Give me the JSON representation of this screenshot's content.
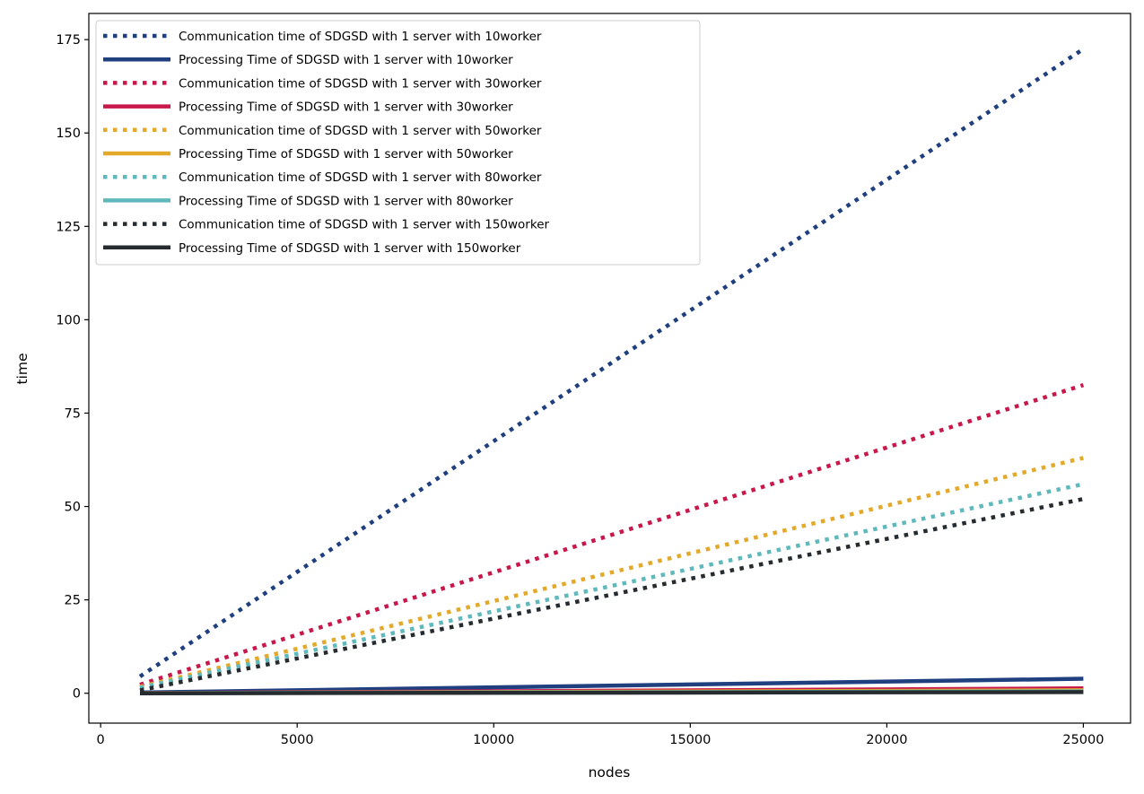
{
  "chart_data": {
    "type": "line",
    "title": "",
    "xlabel": "nodes",
    "ylabel": "time",
    "xlim": [
      -300,
      26200
    ],
    "ylim": [
      -8,
      182
    ],
    "x_ticks": [
      0,
      5000,
      10000,
      15000,
      20000,
      25000
    ],
    "y_ticks": [
      0,
      25,
      50,
      75,
      100,
      125,
      150,
      175
    ],
    "grid": false,
    "legend_position": "top-left",
    "series": [
      {
        "name": "Communication time of SDGSD with 1 server with 10worker",
        "color": "#1f3f7f",
        "style": "dotted",
        "x": [
          1000,
          25000
        ],
        "y": [
          4.5,
          172.5
        ]
      },
      {
        "name": "Processing Time of SDGSD with 1 server with 10worker",
        "color": "#1f3f7f",
        "style": "solid",
        "x": [
          1000,
          25000
        ],
        "y": [
          0.2,
          3.9
        ]
      },
      {
        "name": "Communication time of SDGSD with 1 server with 30worker",
        "color": "#c8174a",
        "style": "dotted",
        "x": [
          1000,
          25000
        ],
        "y": [
          2.3,
          82.5
        ]
      },
      {
        "name": "Processing Time of SDGSD with 1 server with 30worker",
        "color": "#c8174a",
        "style": "solid",
        "x": [
          1000,
          25000
        ],
        "y": [
          0.05,
          1.3
        ]
      },
      {
        "name": "Communication time of SDGSD with 1 server with 50worker",
        "color": "#e3a92a",
        "style": "dotted",
        "x": [
          1000,
          25000
        ],
        "y": [
          1.7,
          63
        ]
      },
      {
        "name": "Processing Time of SDGSD with 1 server with 50worker",
        "color": "#e3a92a",
        "style": "solid",
        "x": [
          1000,
          25000
        ],
        "y": [
          0.03,
          0.8
        ]
      },
      {
        "name": "Communication time of SDGSD with 1 server with 80worker",
        "color": "#5fb9bc",
        "style": "dotted",
        "x": [
          1000,
          25000
        ],
        "y": [
          1.5,
          56
        ]
      },
      {
        "name": "Processing Time of SDGSD with 1 server with 80worker",
        "color": "#5fb9bc",
        "style": "solid",
        "x": [
          1000,
          25000
        ],
        "y": [
          0.02,
          0.5
        ]
      },
      {
        "name": "Communication time of SDGSD with 1 server with 150worker",
        "color": "#262b2f",
        "style": "dotted",
        "x": [
          1000,
          25000
        ],
        "y": [
          0.8,
          52
        ]
      },
      {
        "name": "Processing Time of SDGSD with 1 server with 150worker",
        "color": "#262b2f",
        "style": "solid",
        "x": [
          1000,
          25000
        ],
        "y": [
          0.01,
          0.3
        ]
      }
    ]
  }
}
